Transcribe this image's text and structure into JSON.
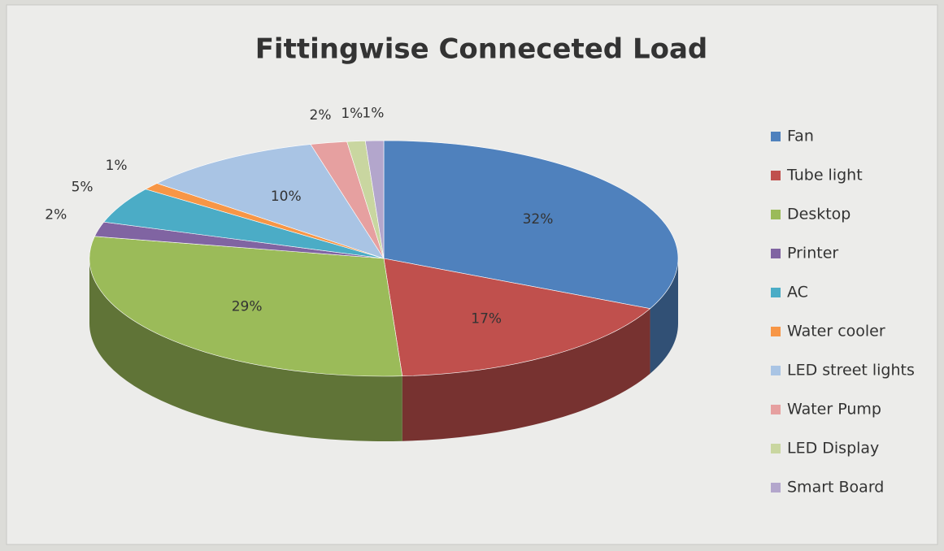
{
  "chart_data": {
    "type": "pie3d",
    "title": "Fittingwise Conneceted Load",
    "categories": [
      "Fan",
      "Tube light",
      "Desktop",
      "Printer",
      "AC",
      "Water cooler",
      "LED street lights",
      "Water Pump",
      "LED Display",
      "Smart Board"
    ],
    "values": [
      32,
      17,
      29,
      2,
      5,
      1,
      10,
      2,
      1,
      1
    ],
    "value_labels": [
      "32%",
      "17%",
      "29%",
      "2%",
      "5%",
      "1%",
      "10%",
      "2%",
      "1%",
      "1%"
    ],
    "colors": [
      "#4f81bd",
      "#c0504d",
      "#9bbb59",
      "#8064a2",
      "#4bacc6",
      "#f79646",
      "#a9c4e4",
      "#e6a0a0",
      "#c9d6a0",
      "#b3a6cc"
    ],
    "legend": "right"
  }
}
